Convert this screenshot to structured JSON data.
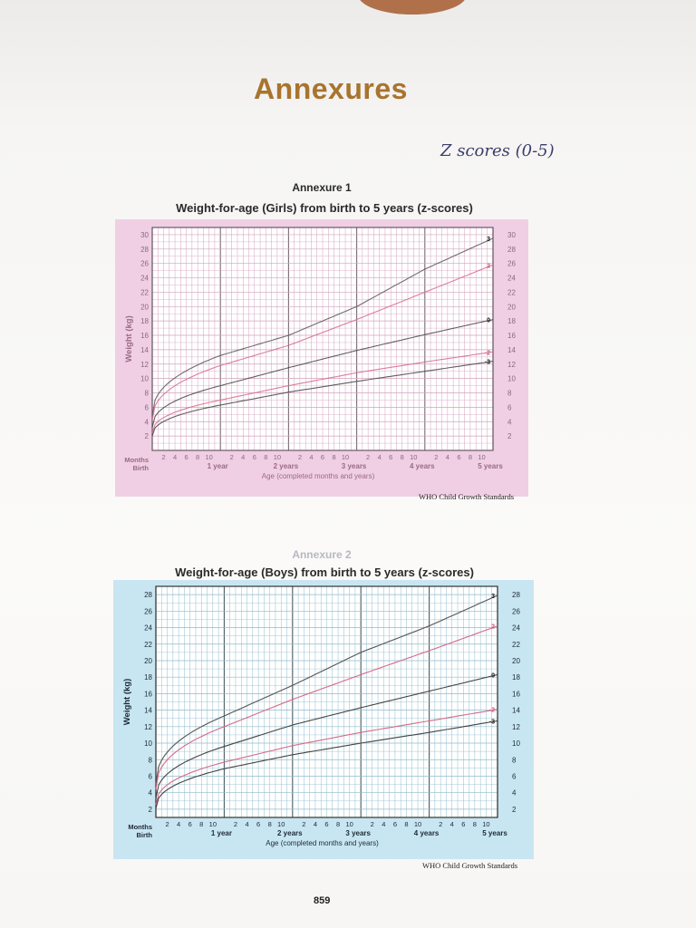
{
  "page": {
    "title": "Annexures",
    "handwritten_note": "Z scores (0-5)",
    "page_number": "859"
  },
  "chart_data": [
    {
      "type": "line",
      "annex_label": "Annexure 1",
      "title": "Weight-for-age (Girls) from birth to 5 years (z-scores)",
      "ylabel": "Weight (kg)",
      "xlabel": "Age (completed months and years)",
      "source": "WHO Child Growth Standards",
      "month_tick_labels": [
        "2",
        "4",
        "6",
        "8",
        "10"
      ],
      "year_labels": [
        "1 year",
        "2 years",
        "3 years",
        "4 years",
        "5 years"
      ],
      "start_labels": [
        "Months",
        "Birth"
      ],
      "left_y_ticks": [
        2,
        4,
        6,
        8,
        10,
        12,
        14,
        16,
        18,
        20,
        22,
        24,
        26,
        28,
        30
      ],
      "right_y_ticks": [
        2,
        4,
        6,
        8,
        10,
        12,
        14,
        16,
        18,
        20,
        22,
        24,
        26,
        28,
        30
      ],
      "ylim": [
        0,
        31
      ],
      "x_months": [
        0,
        12,
        24,
        36,
        48,
        60
      ],
      "series": [
        {
          "name": "3",
          "color": "#555555",
          "values": [
            4.8,
            13.2,
            16.0,
            20.0,
            25.2,
            29.5
          ]
        },
        {
          "name": "2",
          "color": "#d56a8a",
          "values": [
            4.2,
            11.8,
            14.6,
            18.2,
            22.0,
            25.8
          ]
        },
        {
          "name": "0",
          "color": "#444444",
          "values": [
            3.2,
            9.0,
            11.5,
            13.9,
            16.1,
            18.2
          ]
        },
        {
          "name": "-2",
          "color": "#d56a8a",
          "values": [
            2.4,
            7.0,
            9.0,
            10.8,
            12.3,
            13.7
          ]
        },
        {
          "name": "-3",
          "color": "#444444",
          "values": [
            2.0,
            6.3,
            8.1,
            9.6,
            11.0,
            12.4
          ]
        }
      ]
    },
    {
      "type": "line",
      "annex_label": "Annexure 2",
      "title": "Weight-for-age (Boys) from birth to 5 years (z-scores)",
      "ylabel": "Weight (kg)",
      "xlabel": "Age (completed months and years)",
      "source": "WHO Child Growth Standards",
      "month_tick_labels": [
        "2",
        "4",
        "6",
        "8",
        "10"
      ],
      "year_labels": [
        "1 year",
        "2 years",
        "3 years",
        "4 years",
        "5 years"
      ],
      "start_labels": [
        "Months",
        "Birth"
      ],
      "left_y_ticks": [
        2,
        4,
        6,
        8,
        10,
        12,
        14,
        16,
        18,
        20,
        22,
        24,
        26,
        28
      ],
      "right_y_ticks": [
        2,
        4,
        6,
        8,
        10,
        12,
        14,
        16,
        18,
        20,
        22,
        24,
        26,
        28
      ],
      "ylim": [
        1,
        29
      ],
      "x_months": [
        0,
        12,
        24,
        36,
        48,
        60
      ],
      "series": [
        {
          "name": "3",
          "color": "#555555",
          "values": [
            5.0,
            13.3,
            17.0,
            21.0,
            24.2,
            27.9
          ]
        },
        {
          "name": "2",
          "color": "#d56a8a",
          "values": [
            4.4,
            12.0,
            15.3,
            18.3,
            21.2,
            24.2
          ]
        },
        {
          "name": "0",
          "color": "#444444",
          "values": [
            3.3,
            9.6,
            12.2,
            14.3,
            16.3,
            18.3
          ]
        },
        {
          "name": "-2",
          "color": "#d56a8a",
          "values": [
            2.5,
            7.7,
            9.7,
            11.3,
            12.7,
            14.1
          ]
        },
        {
          "name": "-3",
          "color": "#444444",
          "values": [
            2.1,
            6.9,
            8.6,
            10.0,
            11.3,
            12.7
          ]
        }
      ]
    }
  ]
}
